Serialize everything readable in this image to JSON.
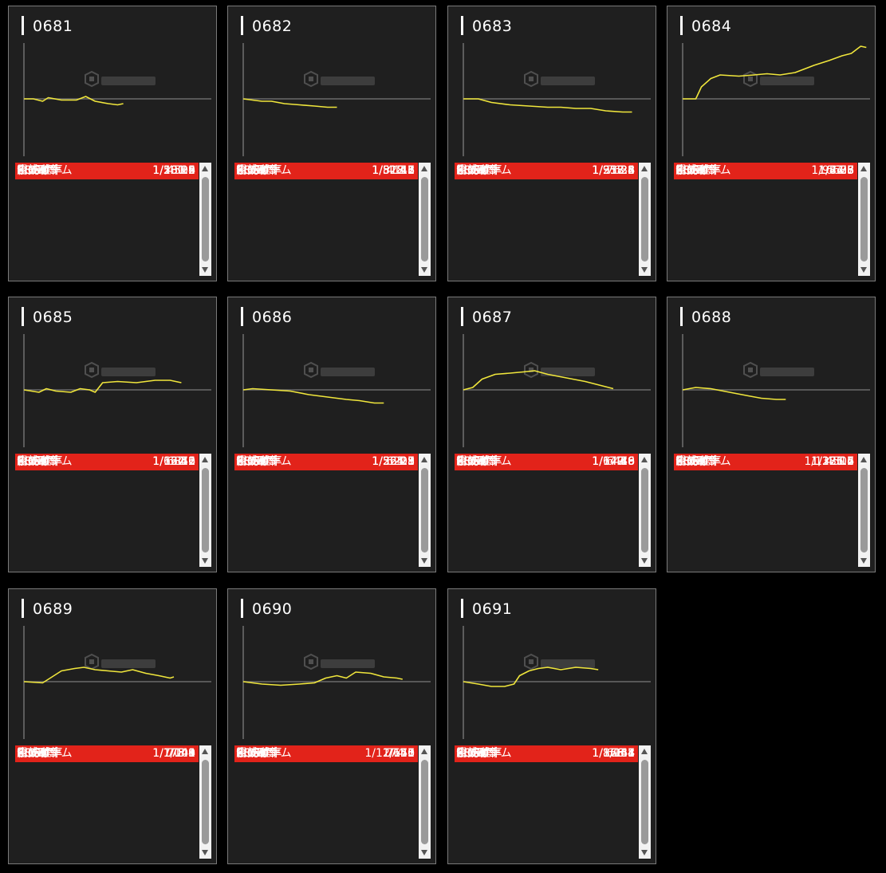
{
  "labels": {
    "bonus": "BONUS",
    "big": "BIG",
    "reg": "REG",
    "big_rate": "BIG確率",
    "reg_rate": "REG確率",
    "combined_rate": "合成確率",
    "total_games": "累計ゲーム"
  },
  "colors": {
    "graph_line": "#f0e63c",
    "bonus_bar": "#e2231a",
    "panel": "#1f1f1f"
  },
  "machines": [
    {
      "id": "0681",
      "bonus": "25",
      "big": "16",
      "reg": "9",
      "big_rate": "1/281.5",
      "reg_rate": "1/500.4",
      "combined_rate": "1/180.2",
      "total_games": "4503",
      "graph": [
        [
          0,
          0
        ],
        [
          0.05,
          0
        ],
        [
          0.1,
          -0.02
        ],
        [
          0.13,
          0.01
        ],
        [
          0.2,
          -0.01
        ],
        [
          0.28,
          -0.01
        ],
        [
          0.33,
          0.02
        ],
        [
          0.38,
          -0.02
        ],
        [
          0.45,
          -0.04
        ],
        [
          0.5,
          -0.05
        ],
        [
          0.53,
          -0.04
        ]
      ]
    },
    {
      "id": "0682",
      "bonus": "13",
      "big": "8",
      "reg": "5",
      "big_rate": "1/517.7",
      "reg_rate": "1/828.2",
      "combined_rate": "1/318.6",
      "total_games": "4141",
      "graph": [
        [
          0,
          0
        ],
        [
          0.05,
          -0.01
        ],
        [
          0.1,
          -0.02
        ],
        [
          0.15,
          -0.02
        ],
        [
          0.22,
          -0.04
        ],
        [
          0.3,
          -0.05
        ],
        [
          0.38,
          -0.06
        ],
        [
          0.45,
          -0.07
        ],
        [
          0.5,
          -0.07
        ]
      ]
    },
    {
      "id": "0683",
      "bonus": "32",
      "big": "24",
      "reg": "8",
      "big_rate": "1/317.8",
      "reg_rate": "1/953.3",
      "combined_rate": "1/238.4",
      "total_games": "7626",
      "graph": [
        [
          0,
          0
        ],
        [
          0.08,
          0
        ],
        [
          0.15,
          -0.03
        ],
        [
          0.25,
          -0.05
        ],
        [
          0.35,
          -0.06
        ],
        [
          0.45,
          -0.07
        ],
        [
          0.52,
          -0.07
        ],
        [
          0.6,
          -0.08
        ],
        [
          0.68,
          -0.08
        ],
        [
          0.76,
          -0.1
        ],
        [
          0.85,
          -0.11
        ],
        [
          0.9,
          -0.11
        ]
      ]
    },
    {
      "id": "0684",
      "bonus": "85",
      "big": "78",
      "reg": "7",
      "big_rate": "1/84.7",
      "reg_rate": "1/943.6",
      "combined_rate": "1/77.8",
      "total_games": "6605",
      "graph": [
        [
          0,
          0
        ],
        [
          0.07,
          0
        ],
        [
          0.1,
          0.1
        ],
        [
          0.15,
          0.17
        ],
        [
          0.2,
          0.2
        ],
        [
          0.3,
          0.19
        ],
        [
          0.38,
          0.2
        ],
        [
          0.45,
          0.21
        ],
        [
          0.52,
          0.2
        ],
        [
          0.6,
          0.22
        ],
        [
          0.7,
          0.28
        ],
        [
          0.78,
          0.32
        ],
        [
          0.85,
          0.36
        ],
        [
          0.9,
          0.38
        ],
        [
          0.95,
          0.44
        ],
        [
          0.98,
          0.43
        ]
      ]
    },
    {
      "id": "0685",
      "bonus": "52",
      "big": "41",
      "reg": "11",
      "big_rate": "1/167.6",
      "reg_rate": "1/624.6",
      "combined_rate": "1/132.2",
      "total_games": "6870",
      "graph": [
        [
          0,
          0
        ],
        [
          0.08,
          -0.02
        ],
        [
          0.12,
          0.01
        ],
        [
          0.17,
          -0.01
        ],
        [
          0.25,
          -0.02
        ],
        [
          0.3,
          0.01
        ],
        [
          0.35,
          0
        ],
        [
          0.38,
          -0.02
        ],
        [
          0.42,
          0.06
        ],
        [
          0.5,
          0.07
        ],
        [
          0.6,
          0.06
        ],
        [
          0.7,
          0.08
        ],
        [
          0.78,
          0.08
        ],
        [
          0.84,
          0.06
        ]
      ]
    },
    {
      "id": "0686",
      "bonus": "28",
      "big": "17",
      "reg": "11",
      "big_rate": "1/365.3",
      "reg_rate": "1/564.5",
      "combined_rate": "1/221.8",
      "total_games": "6209",
      "graph": [
        [
          0,
          0
        ],
        [
          0.05,
          0.01
        ],
        [
          0.15,
          0
        ],
        [
          0.25,
          -0.01
        ],
        [
          0.35,
          -0.04
        ],
        [
          0.45,
          -0.06
        ],
        [
          0.55,
          -0.08
        ],
        [
          0.62,
          -0.09
        ],
        [
          0.7,
          -0.11
        ],
        [
          0.75,
          -0.11
        ]
      ]
    },
    {
      "id": "0687",
      "bonus": "46",
      "big": "36",
      "reg": "10",
      "big_rate": "1/179.9",
      "reg_rate": "1/647.6",
      "combined_rate": "1/140.8",
      "total_games": "6476",
      "graph": [
        [
          0,
          0
        ],
        [
          0.05,
          0.02
        ],
        [
          0.1,
          0.09
        ],
        [
          0.17,
          0.13
        ],
        [
          0.25,
          0.14
        ],
        [
          0.32,
          0.15
        ],
        [
          0.38,
          0.16
        ],
        [
          0.45,
          0.13
        ],
        [
          0.55,
          0.1
        ],
        [
          0.65,
          0.07
        ],
        [
          0.75,
          0.03
        ],
        [
          0.8,
          0.01
        ]
      ]
    },
    {
      "id": "0688",
      "bonus": "16",
      "big": "12",
      "reg": "4",
      "big_rate": "1/375.5",
      "reg_rate": "1/1126.5",
      "combined_rate": "1/281.7",
      "total_games": "4506",
      "graph": [
        [
          0,
          0
        ],
        [
          0.07,
          0.02
        ],
        [
          0.15,
          0.01
        ],
        [
          0.25,
          -0.02
        ],
        [
          0.35,
          -0.05
        ],
        [
          0.42,
          -0.07
        ],
        [
          0.5,
          -0.08
        ],
        [
          0.55,
          -0.08
        ]
      ]
    },
    {
      "id": "0689",
      "bonus": "49",
      "big": "40",
      "reg": "9",
      "big_rate": "1/175.1",
      "reg_rate": "1/778.3",
      "combined_rate": "1/143",
      "total_games": "7004",
      "graph": [
        [
          0,
          0
        ],
        [
          0.1,
          -0.01
        ],
        [
          0.15,
          0.04
        ],
        [
          0.2,
          0.09
        ],
        [
          0.27,
          0.11
        ],
        [
          0.32,
          0.12
        ],
        [
          0.38,
          0.1
        ],
        [
          0.45,
          0.09
        ],
        [
          0.52,
          0.08
        ],
        [
          0.58,
          0.1
        ],
        [
          0.65,
          0.07
        ],
        [
          0.72,
          0.05
        ],
        [
          0.78,
          0.03
        ],
        [
          0.8,
          0.04
        ]
      ]
    },
    {
      "id": "0690",
      "bonus": "51",
      "big": "45",
      "reg": "6",
      "big_rate": "1/170",
      "reg_rate": "1/1274.5",
      "combined_rate": "1/150",
      "total_games": "7647",
      "graph": [
        [
          0,
          0
        ],
        [
          0.1,
          -0.02
        ],
        [
          0.2,
          -0.03
        ],
        [
          0.3,
          -0.02
        ],
        [
          0.38,
          -0.01
        ],
        [
          0.44,
          0.03
        ],
        [
          0.5,
          0.05
        ],
        [
          0.55,
          0.03
        ],
        [
          0.6,
          0.08
        ],
        [
          0.68,
          0.07
        ],
        [
          0.75,
          0.04
        ],
        [
          0.82,
          0.03
        ],
        [
          0.85,
          0.02
        ]
      ]
    },
    {
      "id": "0691",
      "bonus": "41",
      "big": "34",
      "reg": "7",
      "big_rate": "1/178.4",
      "reg_rate": "1/866.3",
      "combined_rate": "1/148",
      "total_games": "6064",
      "graph": [
        [
          0,
          0
        ],
        [
          0.08,
          -0.02
        ],
        [
          0.15,
          -0.04
        ],
        [
          0.22,
          -0.04
        ],
        [
          0.27,
          -0.02
        ],
        [
          0.3,
          0.05
        ],
        [
          0.35,
          0.09
        ],
        [
          0.4,
          0.11
        ],
        [
          0.45,
          0.12
        ],
        [
          0.52,
          0.1
        ],
        [
          0.6,
          0.12
        ],
        [
          0.68,
          0.11
        ],
        [
          0.72,
          0.1
        ]
      ]
    }
  ]
}
